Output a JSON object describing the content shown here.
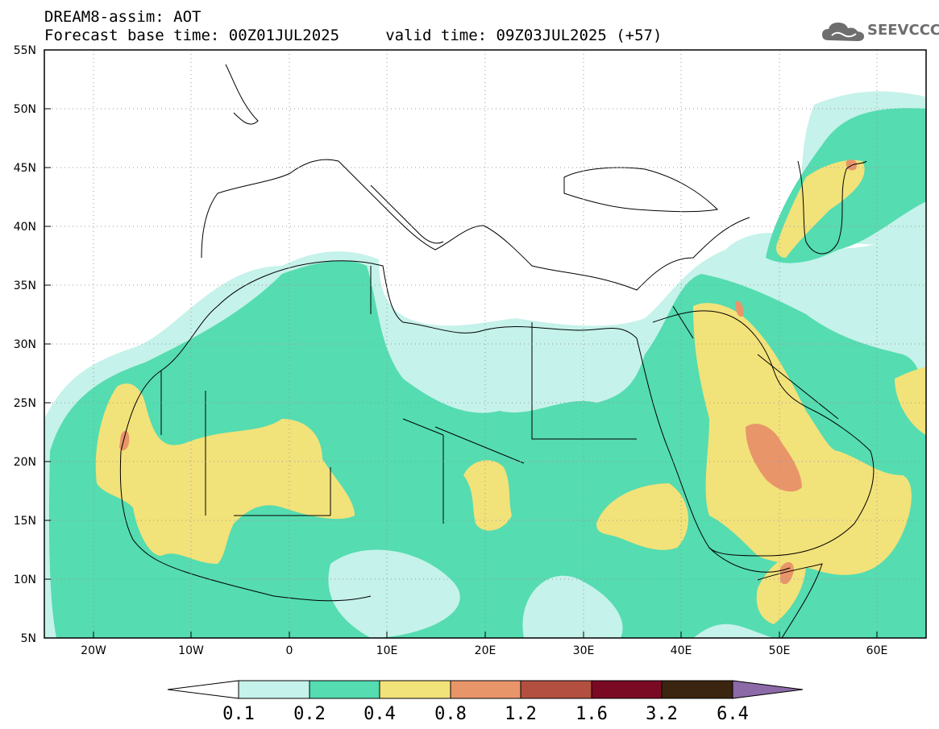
{
  "title": {
    "line1": "DREAM8-assim: AOT",
    "line2": "Forecast base time: 00Z01JUL2025     valid time: 09Z03JUL2025 (+57)"
  },
  "logo": {
    "text": "SEEVCCC",
    "icon": "cloud-icon"
  },
  "map": {
    "lon_range": [
      -25,
      65
    ],
    "lat_range": [
      5,
      55
    ],
    "y_ticks": [
      "55N",
      "50N",
      "45N",
      "40N",
      "35N",
      "30N",
      "25N",
      "20N",
      "15N",
      "10N",
      "5N"
    ],
    "x_ticks": [
      "20W",
      "10W",
      "0",
      "10E",
      "20E",
      "30E",
      "40E",
      "50E",
      "60E"
    ],
    "grid": "dotted"
  },
  "colorbar": {
    "labels": [
      "0.1",
      "0.2",
      "0.4",
      "0.8",
      "1.2",
      "1.6",
      "3.2",
      "6.4"
    ],
    "colors": [
      "#c5f2ea",
      "#55dcb0",
      "#f2e27a",
      "#e9956a",
      "#b24f40",
      "#7a0a24",
      "#3b2410",
      "#8c6aa8"
    ]
  }
}
